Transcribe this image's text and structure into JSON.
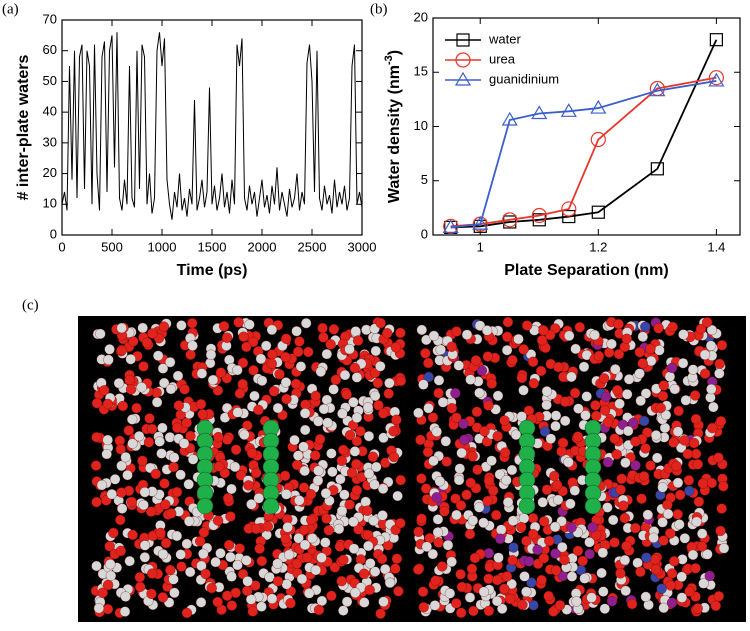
{
  "chart_data": [
    {
      "type": "line",
      "panel_label": "(a)",
      "xlabel": "Time (ps)",
      "ylabel": "# inter-plate waters",
      "xlim": [
        0,
        3000
      ],
      "ylim": [
        0,
        70
      ],
      "xticks": [
        0,
        500,
        1000,
        1500,
        2000,
        2500,
        3000
      ],
      "yticks": [
        0,
        10,
        20,
        30,
        40,
        50,
        60,
        70
      ],
      "x": [
        0,
        25,
        50,
        75,
        100,
        125,
        150,
        175,
        200,
        225,
        250,
        275,
        300,
        325,
        350,
        375,
        400,
        425,
        450,
        475,
        500,
        525,
        550,
        575,
        600,
        625,
        650,
        675,
        700,
        725,
        750,
        775,
        800,
        825,
        850,
        875,
        900,
        925,
        950,
        975,
        1000,
        1025,
        1050,
        1075,
        1100,
        1125,
        1150,
        1175,
        1200,
        1225,
        1250,
        1275,
        1300,
        1325,
        1350,
        1375,
        1400,
        1425,
        1450,
        1475,
        1500,
        1525,
        1550,
        1575,
        1600,
        1625,
        1650,
        1675,
        1700,
        1725,
        1750,
        1775,
        1800,
        1825,
        1850,
        1875,
        1900,
        1925,
        1950,
        1975,
        2000,
        2025,
        2050,
        2075,
        2100,
        2125,
        2150,
        2175,
        2200,
        2225,
        2250,
        2275,
        2300,
        2325,
        2350,
        2375,
        2400,
        2425,
        2450,
        2475,
        2500,
        2525,
        2550,
        2575,
        2600,
        2625,
        2650,
        2675,
        2700,
        2725,
        2750,
        2775,
        2800,
        2825,
        2850,
        2875,
        2900,
        2925,
        2950,
        2975,
        3000
      ],
      "series": [
        {
          "color": "#000000",
          "values": [
            10,
            14,
            8,
            55,
            18,
            60,
            12,
            58,
            62,
            15,
            60,
            55,
            10,
            62,
            20,
            8,
            58,
            63,
            14,
            60,
            65,
            22,
            66,
            12,
            8,
            18,
            10,
            55,
            12,
            9,
            60,
            15,
            62,
            58,
            10,
            20,
            7,
            12,
            60,
            66,
            55,
            64,
            18,
            10,
            5,
            14,
            9,
            20,
            8,
            12,
            6,
            15,
            10,
            44,
            8,
            12,
            18,
            9,
            14,
            48,
            10,
            16,
            8,
            12,
            20,
            9,
            14,
            7,
            18,
            10,
            62,
            55,
            64,
            12,
            8,
            16,
            10,
            14,
            6,
            12,
            18,
            9,
            13,
            7,
            16,
            10,
            22,
            8,
            14,
            10,
            6,
            15,
            9,
            12,
            20,
            8,
            14,
            10,
            56,
            62,
            50,
            14,
            60,
            12,
            8,
            16,
            10,
            13,
            7,
            18,
            9,
            14,
            10,
            16,
            8,
            12,
            55,
            62,
            10,
            14,
            9
          ]
        }
      ]
    },
    {
      "type": "line",
      "panel_label": "(b)",
      "xlabel": "Plate Separation (nm)",
      "ylabel": {
        "text": "Water density (nm",
        "sup": "-3",
        "end": ")"
      },
      "xlim": [
        0.92,
        1.44
      ],
      "ylim": [
        0,
        20
      ],
      "xticks": [
        1,
        1.2,
        1.4
      ],
      "yticks": [
        0,
        5,
        10,
        15,
        20
      ],
      "legend": "upper left",
      "x": [
        0.95,
        1.0,
        1.05,
        1.1,
        1.15,
        1.2,
        1.3,
        1.4
      ],
      "series": [
        {
          "name": "water",
          "color": "#000000",
          "marker": "square",
          "values": [
            0.7,
            0.8,
            1.2,
            1.4,
            1.7,
            2.1,
            6.1,
            18
          ]
        },
        {
          "name": "urea",
          "color": "#e8362a",
          "marker": "circle",
          "values": [
            0.8,
            1.0,
            1.4,
            1.8,
            2.4,
            8.8,
            13.5,
            14.5
          ]
        },
        {
          "name": "guanidinium",
          "color": "#3a5fcd",
          "marker": "triangle",
          "values": [
            0.7,
            1.0,
            10.6,
            11.2,
            11.4,
            11.7,
            13.3,
            14.2
          ]
        }
      ]
    }
  ],
  "panel_c": {
    "label": "(c)"
  }
}
